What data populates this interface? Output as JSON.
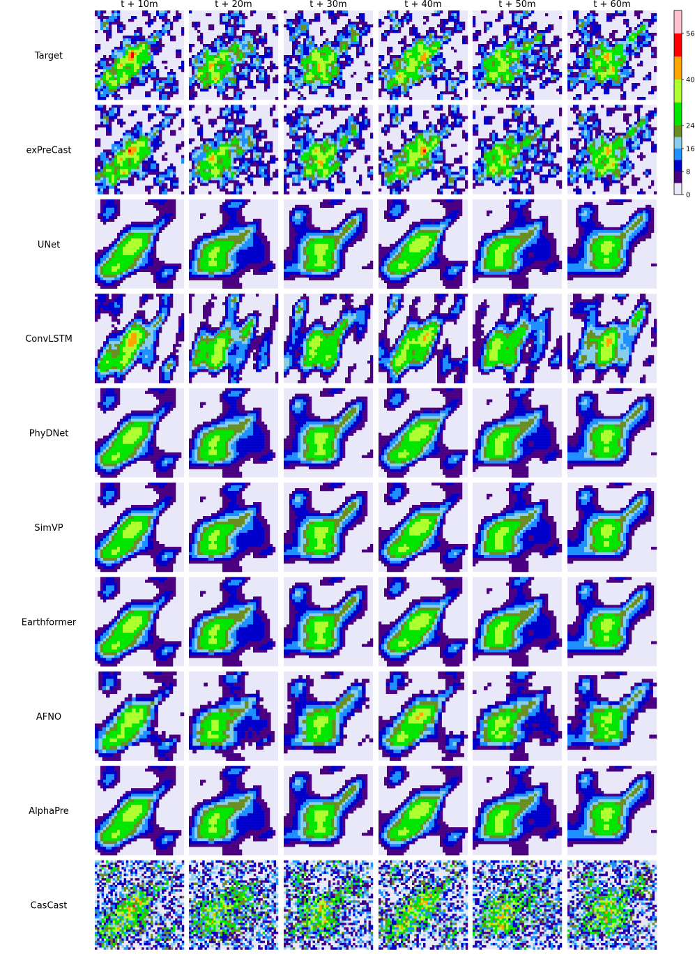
{
  "chart_data": {
    "type": "heatmap",
    "columns": [
      "t + 10m",
      "t + 20m",
      "t + 30m",
      "t + 40m",
      "t + 50m",
      "t + 60m"
    ],
    "rows": [
      "Target",
      "exPreCast",
      "UNet",
      "ConvLSTM",
      "PhyDNet",
      "SimVP",
      "Earthformer",
      "AFNO",
      "AlphaPre",
      "CasCast"
    ],
    "colorbar": {
      "ticks": [
        0,
        8,
        16,
        24,
        40,
        56
      ],
      "vmin": 0,
      "vmax": 64,
      "bounds": [
        0,
        4,
        8,
        12,
        16,
        20,
        24,
        32,
        40,
        48,
        56,
        64
      ],
      "colors": [
        "#e8e8f8",
        "#4b0082",
        "#0000cd",
        "#1e90ff",
        "#87ceeb",
        "#6b8e23",
        "#00e600",
        "#adff2f",
        "#ffa500",
        "#ff0000",
        "#ffc0cb"
      ]
    },
    "row_styles": {
      "Target": "detailed",
      "exPreCast": "detailed",
      "UNet": "smooth",
      "ConvLSTM": "medium",
      "PhyDNet": "smooth",
      "SimVP": "smooth",
      "Earthformer": "smooth",
      "AFNO": "blocky",
      "AlphaPre": "smooth",
      "CasCast": "noisy"
    }
  }
}
